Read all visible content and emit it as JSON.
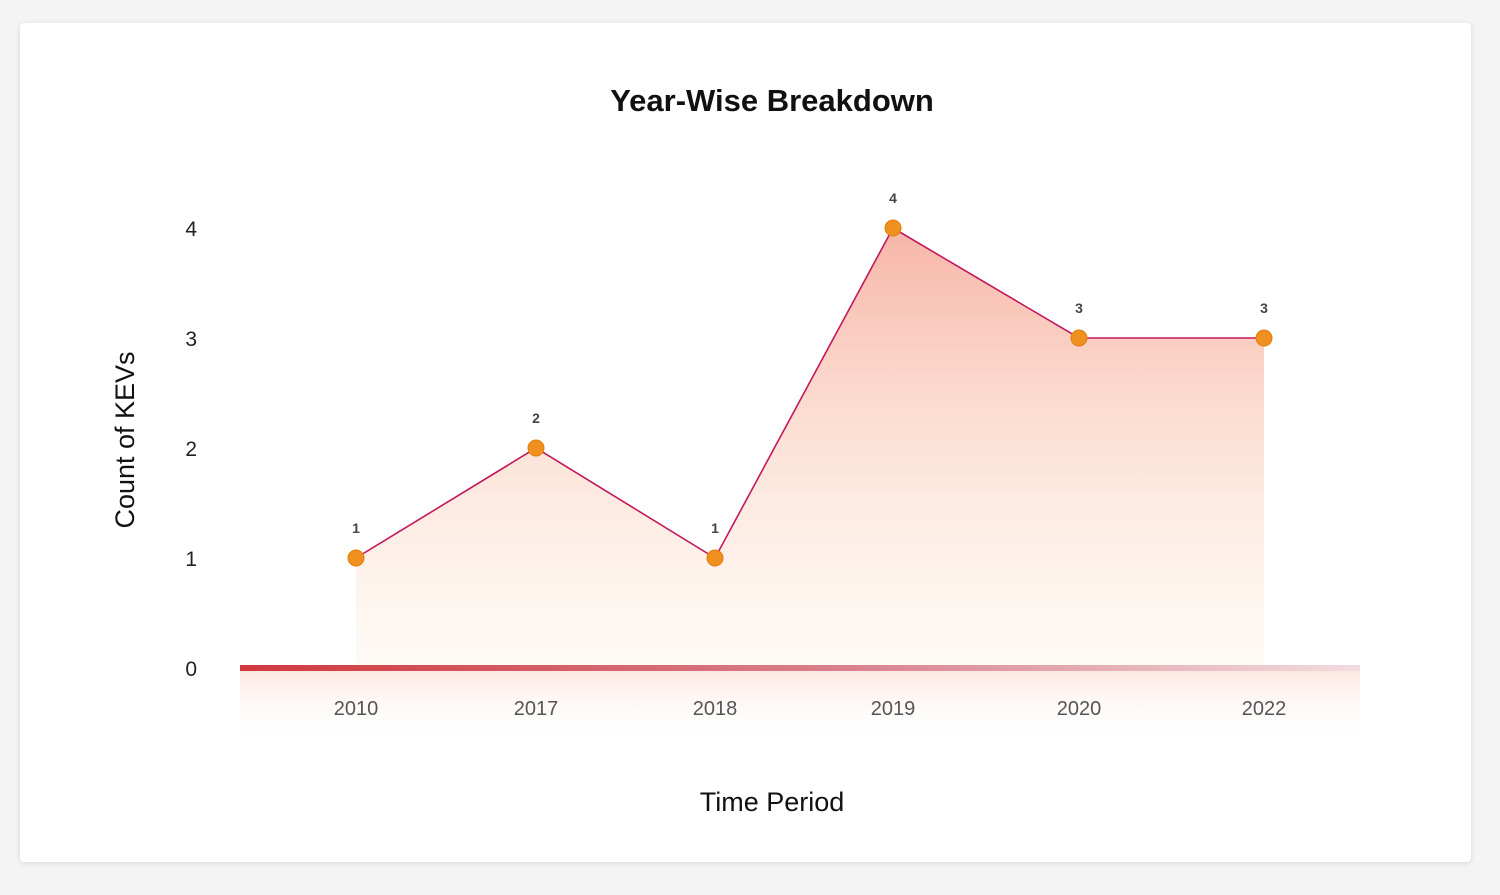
{
  "chart_data": {
    "type": "line",
    "title": "Year-Wise Breakdown",
    "xlabel": "Time Period",
    "ylabel": "Count of KEVs",
    "categories": [
      "2010",
      "2017",
      "2018",
      "2019",
      "2020",
      "2022"
    ],
    "values": [
      1,
      2,
      1,
      4,
      3,
      3
    ],
    "data_labels": [
      "1",
      "2",
      "1",
      "4",
      "3",
      "3"
    ],
    "yticks": [
      "0",
      "1",
      "2",
      "3",
      "4"
    ],
    "ylim": [
      0,
      4
    ],
    "grid": true,
    "area_fill": true,
    "colors": {
      "line": "#c2185b",
      "marker": "#f0901e",
      "area_top": "#f5a898",
      "area_bottom": "#fdf1e6",
      "grid": "#f8c4b6",
      "baseline": "#d0393e"
    }
  }
}
